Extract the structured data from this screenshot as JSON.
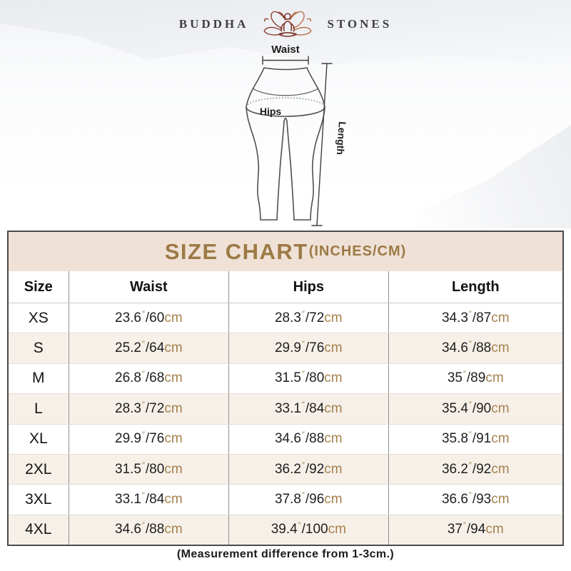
{
  "brand": {
    "left": "BUDDHA",
    "right": "STONES",
    "logo_icon": "lotus-meditation-icon"
  },
  "diagram": {
    "waist_label": "Waist",
    "hips_label": "Hips",
    "length_label": "Length"
  },
  "table": {
    "title": "SIZE CHART",
    "title_suffix": "(INCHES/CM)",
    "columns": [
      "Size",
      "Waist",
      "Hips",
      "Length"
    ],
    "unit_inch_mark": "″",
    "unit_cm": "cm",
    "rows": [
      {
        "size": "XS",
        "waist": {
          "in": "23.6",
          "cm": "60"
        },
        "hips": {
          "in": "28.3",
          "cm": "72"
        },
        "length": {
          "in": "34.3",
          "cm": "87"
        }
      },
      {
        "size": "S",
        "waist": {
          "in": "25.2",
          "cm": "64"
        },
        "hips": {
          "in": "29.9",
          "cm": "76"
        },
        "length": {
          "in": "34.6",
          "cm": "88"
        }
      },
      {
        "size": "M",
        "waist": {
          "in": "26.8",
          "cm": "68"
        },
        "hips": {
          "in": "31.5",
          "cm": "80"
        },
        "length": {
          "in": "35",
          "cm": "89"
        }
      },
      {
        "size": "L",
        "waist": {
          "in": "28.3",
          "cm": "72"
        },
        "hips": {
          "in": "33.1",
          "cm": "84"
        },
        "length": {
          "in": "35.4",
          "cm": "90"
        }
      },
      {
        "size": "XL",
        "waist": {
          "in": "29.9",
          "cm": "76"
        },
        "hips": {
          "in": "34.6",
          "cm": "88"
        },
        "length": {
          "in": "35.8",
          "cm": "91"
        }
      },
      {
        "size": "2XL",
        "waist": {
          "in": "31.5",
          "cm": "80"
        },
        "hips": {
          "in": "36.2",
          "cm": "92"
        },
        "length": {
          "in": "36.2",
          "cm": "92"
        }
      },
      {
        "size": "3XL",
        "waist": {
          "in": "33.1",
          "cm": "84"
        },
        "hips": {
          "in": "37.8",
          "cm": "96"
        },
        "length": {
          "in": "36.6",
          "cm": "93"
        }
      },
      {
        "size": "4XL",
        "waist": {
          "in": "34.6",
          "cm": "88"
        },
        "hips": {
          "in": "39.4",
          "cm": "100"
        },
        "length": {
          "in": "37",
          "cm": "94"
        }
      }
    ]
  },
  "footer": {
    "note": "(Measurement difference from 1-3cm.)"
  },
  "colors": {
    "title_brown": "#9c7a45",
    "unit_brown": "#a5814e",
    "title_band_beige": "#f0e1d7",
    "row_stripe_beige": "#f6f0e9",
    "table_border": "#4b4b4b",
    "logo_red": "#8c3a2e",
    "logo_copper": "#b5693c"
  }
}
